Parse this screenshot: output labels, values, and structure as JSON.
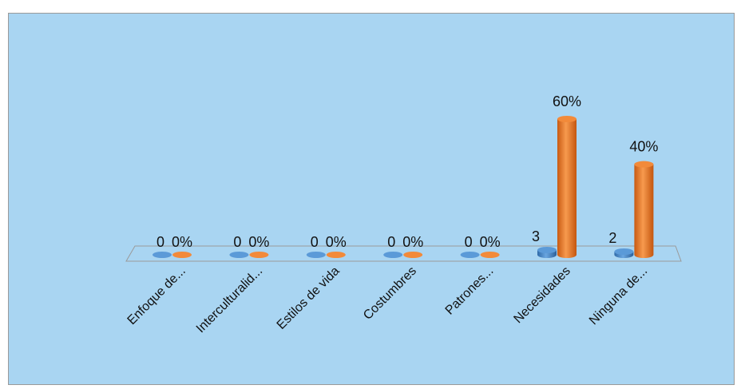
{
  "chart_data": {
    "type": "bar",
    "categories": [
      "Enfoque de...",
      "Interculturalid...",
      "Estilos de vida",
      "Costumbres",
      "Patrones...",
      "Necesidades",
      "Ninguna de..."
    ],
    "series": [
      {
        "values": [
          0,
          0,
          0,
          0,
          0,
          3,
          2
        ],
        "labels": [
          "0",
          "0",
          "0",
          "0",
          "0",
          "3",
          "2"
        ]
      },
      {
        "values": [
          0,
          0,
          0,
          0,
          0,
          60,
          40
        ],
        "labels": [
          "0%",
          "0%",
          "0%",
          "0%",
          "0%",
          "60%",
          "40%"
        ]
      }
    ],
    "ylim": [
      0,
      60
    ],
    "grid": false,
    "legend": false,
    "colors": {
      "background": "#a9d5f2",
      "border": "#9a9a9a",
      "count_series": "#4a86c6",
      "percent_series": "#ef7d2a"
    }
  }
}
